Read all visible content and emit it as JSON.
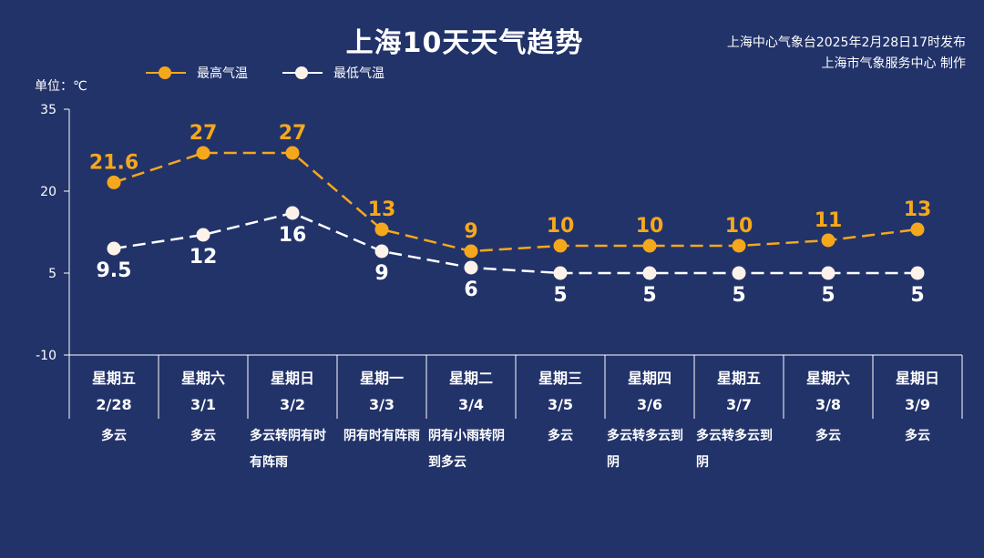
{
  "title": "上海10天天气趋势",
  "issuer": {
    "line1": "上海中心气象台2025年2月28日17时发布",
    "line2": "上海市气象服务中心 制作"
  },
  "unit_label": "单位：℃",
  "legend": {
    "high": "最高气温",
    "low": "最低气温"
  },
  "colors": {
    "background": "#22336a",
    "high": "#f5a81c",
    "low": "#ffffff",
    "low_marker": "#fdf2e9",
    "axis": "#ffffff"
  },
  "chart_data": {
    "type": "line",
    "title": "上海10天天气趋势",
    "ylabel": "单位：℃",
    "ylim": [
      -10,
      35
    ],
    "yticks": [
      -10,
      5,
      20,
      35
    ],
    "grid": false,
    "legend_position": "top-left",
    "x": [
      "2/28",
      "3/1",
      "3/2",
      "3/3",
      "3/4",
      "3/5",
      "3/6",
      "3/7",
      "3/8",
      "3/9"
    ],
    "weekdays": [
      "星期五",
      "星期六",
      "星期日",
      "星期一",
      "星期二",
      "星期三",
      "星期四",
      "星期五",
      "星期六",
      "星期日"
    ],
    "series": [
      {
        "name": "最高气温",
        "values": [
          21.6,
          27,
          27,
          13,
          9,
          10,
          10,
          10,
          11,
          13
        ]
      },
      {
        "name": "最低气温",
        "values": [
          9.5,
          12,
          16,
          9,
          6,
          5,
          5,
          5,
          5,
          5
        ]
      }
    ],
    "conditions": [
      "多云",
      "多云",
      "多云转阴有时有阵雨",
      "阴有时有阵雨",
      "阴有小雨转阴到多云",
      "多云",
      "多云转多云到阴",
      "多云转多云到阴",
      "多云",
      "多云"
    ]
  }
}
